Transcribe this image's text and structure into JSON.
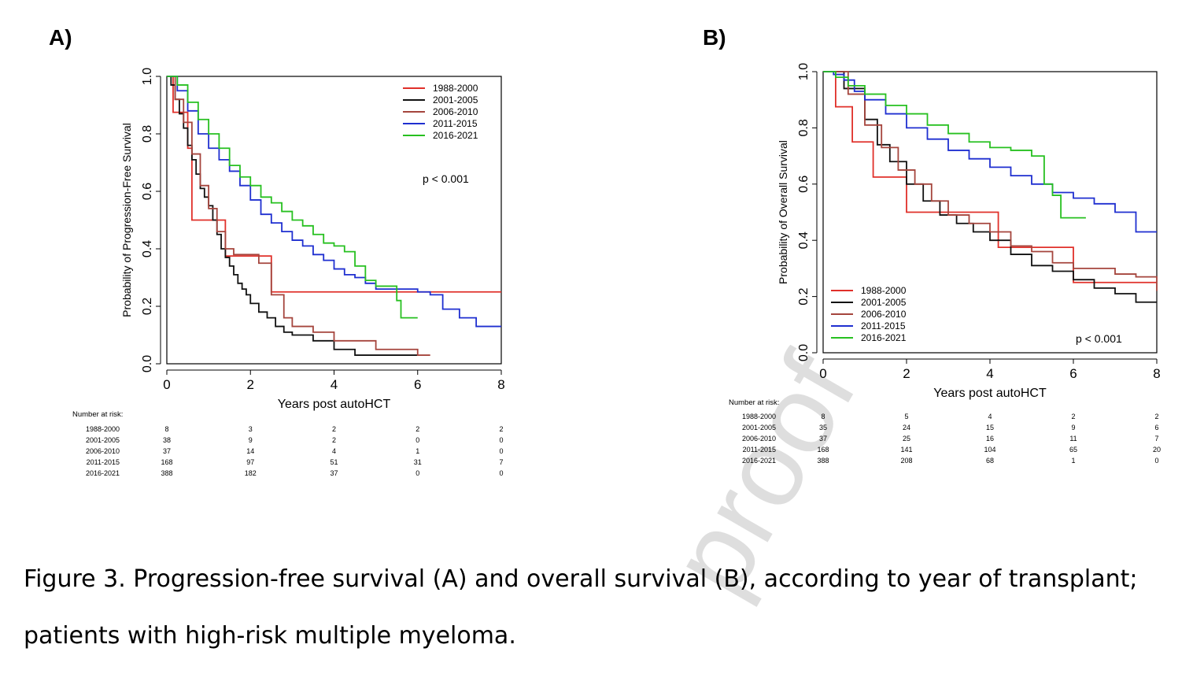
{
  "panel_labels": [
    "A)",
    "B)"
  ],
  "caption": "Figure 3. Progression-free survival (A) and overall survival (B), according to year of transplant; patients with high-risk multiple myeloma.",
  "watermark": "proof",
  "colors": {
    "1988-2000": "#e0302a",
    "2001-2005": "#111111",
    "2006-2010": "#a5453d",
    "2011-2015": "#1f2fd0",
    "2016-2021": "#27c020"
  },
  "chart_data": [
    {
      "type": "line",
      "title": "",
      "xlabel": "Years post autoHCT",
      "ylabel": "Probability of Progression-Free Survival",
      "xlim": [
        0,
        8
      ],
      "ylim": [
        0,
        1
      ],
      "xticks": [
        "0",
        "2",
        "4",
        "6",
        "8"
      ],
      "yticks": [
        "0.0",
        "0.2",
        "0.4",
        "0.6",
        "0.8",
        "1.0"
      ],
      "legend_position": "top-right",
      "pvalue": "p < 0.001",
      "risk_table": {
        "header": "Number at risk:",
        "times": [
          0,
          2,
          4,
          6,
          8
        ],
        "rows": [
          {
            "label": "1988-2000",
            "values": [
              "8",
              "3",
              "2",
              "2",
              "2"
            ]
          },
          {
            "label": "2001-2005",
            "values": [
              "38",
              "9",
              "2",
              "0",
              "0"
            ]
          },
          {
            "label": "2006-2010",
            "values": [
              "37",
              "14",
              "4",
              "1",
              "0"
            ]
          },
          {
            "label": "2011-2015",
            "values": [
              "168",
              "97",
              "51",
              "31",
              "7"
            ]
          },
          {
            "label": "2016-2021",
            "values": [
              "388",
              "182",
              "37",
              "0",
              "0"
            ]
          }
        ]
      },
      "series": [
        {
          "name": "1988-2000",
          "x": [
            0,
            0.15,
            0.5,
            0.6,
            1.0,
            1.4,
            2.0,
            2.5,
            8
          ],
          "y": [
            1,
            0.875,
            0.75,
            0.5,
            0.5,
            0.375,
            0.375,
            0.25,
            0.25
          ]
        },
        {
          "name": "2001-2005",
          "x": [
            0,
            0.1,
            0.2,
            0.3,
            0.4,
            0.5,
            0.6,
            0.7,
            0.8,
            0.9,
            1.0,
            1.1,
            1.2,
            1.3,
            1.4,
            1.5,
            1.6,
            1.7,
            1.8,
            1.9,
            2.0,
            2.2,
            2.4,
            2.6,
            2.8,
            3.0,
            3.5,
            4.0,
            4.5,
            6.0
          ],
          "y": [
            1,
            0.97,
            0.92,
            0.87,
            0.82,
            0.76,
            0.71,
            0.66,
            0.61,
            0.58,
            0.55,
            0.5,
            0.45,
            0.4,
            0.37,
            0.34,
            0.31,
            0.28,
            0.26,
            0.24,
            0.21,
            0.18,
            0.16,
            0.13,
            0.11,
            0.1,
            0.08,
            0.05,
            0.03,
            0.03
          ]
        },
        {
          "name": "2006-2010",
          "x": [
            0,
            0.2,
            0.4,
            0.6,
            0.8,
            1.0,
            1.2,
            1.4,
            1.6,
            1.8,
            2.0,
            2.2,
            2.5,
            2.8,
            3.0,
            3.5,
            4.0,
            5.0,
            6.0,
            6.3
          ],
          "y": [
            1,
            0.92,
            0.84,
            0.73,
            0.62,
            0.54,
            0.46,
            0.4,
            0.38,
            0.38,
            0.38,
            0.35,
            0.24,
            0.16,
            0.13,
            0.11,
            0.08,
            0.05,
            0.03,
            0.03
          ]
        },
        {
          "name": "2011-2015",
          "x": [
            0,
            0.25,
            0.5,
            0.75,
            1.0,
            1.25,
            1.5,
            1.75,
            2.0,
            2.25,
            2.5,
            2.75,
            3.0,
            3.25,
            3.5,
            3.75,
            4.0,
            4.25,
            4.5,
            4.75,
            5.0,
            5.5,
            6.0,
            6.3,
            6.6,
            7.0,
            7.4,
            8.0
          ],
          "y": [
            1,
            0.95,
            0.88,
            0.8,
            0.75,
            0.71,
            0.67,
            0.62,
            0.57,
            0.52,
            0.49,
            0.46,
            0.43,
            0.41,
            0.38,
            0.36,
            0.33,
            0.31,
            0.3,
            0.28,
            0.26,
            0.26,
            0.25,
            0.24,
            0.19,
            0.16,
            0.13,
            0.13
          ]
        },
        {
          "name": "2016-2021",
          "x": [
            0,
            0.25,
            0.5,
            0.75,
            1.0,
            1.25,
            1.5,
            1.75,
            2.0,
            2.25,
            2.5,
            2.75,
            3.0,
            3.25,
            3.5,
            3.75,
            4.0,
            4.25,
            4.5,
            4.75,
            5.0,
            5.5,
            5.6,
            6.0
          ],
          "y": [
            1,
            0.97,
            0.91,
            0.85,
            0.8,
            0.75,
            0.69,
            0.65,
            0.62,
            0.58,
            0.56,
            0.53,
            0.5,
            0.48,
            0.45,
            0.42,
            0.41,
            0.39,
            0.34,
            0.29,
            0.27,
            0.22,
            0.16,
            0.16
          ]
        }
      ]
    },
    {
      "type": "line",
      "title": "",
      "xlabel": "Years post autoHCT",
      "ylabel": "Probability of Overall Survival",
      "xlim": [
        0,
        8
      ],
      "ylim": [
        0,
        1
      ],
      "xticks": [
        "0",
        "2",
        "4",
        "6",
        "8"
      ],
      "yticks": [
        "0.0",
        "0.2",
        "0.4",
        "0.6",
        "0.8",
        "1.0"
      ],
      "legend_position": "bottom-left",
      "pvalue": "p < 0.001",
      "risk_table": {
        "header": "Number at risk:",
        "times": [
          0,
          2,
          4,
          6,
          8
        ],
        "rows": [
          {
            "label": "1988-2000",
            "values": [
              "8",
              "5",
              "4",
              "2",
              "2"
            ]
          },
          {
            "label": "2001-2005",
            "values": [
              "35",
              "24",
              "15",
              "9",
              "6"
            ]
          },
          {
            "label": "2006-2010",
            "values": [
              "37",
              "25",
              "16",
              "11",
              "7"
            ]
          },
          {
            "label": "2011-2015",
            "values": [
              "168",
              "141",
              "104",
              "65",
              "20"
            ]
          },
          {
            "label": "2016-2021",
            "values": [
              "388",
              "208",
              "68",
              "1",
              "0"
            ]
          }
        ]
      },
      "series": [
        {
          "name": "1988-2000",
          "x": [
            0,
            0.3,
            0.7,
            1.2,
            2.0,
            3.5,
            4.2,
            6.0,
            8.0
          ],
          "y": [
            1,
            0.875,
            0.75,
            0.625,
            0.5,
            0.5,
            0.375,
            0.25,
            0.25
          ]
        },
        {
          "name": "2001-2005",
          "x": [
            0,
            0.5,
            1.0,
            1.3,
            1.6,
            2.0,
            2.4,
            2.8,
            3.2,
            3.6,
            4.0,
            4.5,
            5.0,
            5.5,
            6.0,
            6.5,
            7.0,
            7.5,
            8.0
          ],
          "y": [
            1,
            0.94,
            0.83,
            0.74,
            0.68,
            0.6,
            0.54,
            0.49,
            0.46,
            0.43,
            0.4,
            0.35,
            0.31,
            0.29,
            0.26,
            0.23,
            0.21,
            0.18,
            0.18
          ]
        },
        {
          "name": "2006-2010",
          "x": [
            0,
            0.6,
            1.0,
            1.4,
            1.8,
            2.2,
            2.6,
            3.0,
            3.5,
            4.0,
            4.5,
            5.0,
            5.5,
            6.0,
            7.0,
            7.5,
            8.0
          ],
          "y": [
            1,
            0.92,
            0.81,
            0.73,
            0.65,
            0.6,
            0.54,
            0.49,
            0.46,
            0.43,
            0.38,
            0.36,
            0.32,
            0.3,
            0.28,
            0.27,
            0.22
          ]
        },
        {
          "name": "2011-2015",
          "x": [
            0,
            0.25,
            0.5,
            0.75,
            1.0,
            1.5,
            2.0,
            2.5,
            3.0,
            3.5,
            4.0,
            4.5,
            5.0,
            5.5,
            6.0,
            6.5,
            7.0,
            7.5,
            8.0
          ],
          "y": [
            1,
            0.99,
            0.97,
            0.93,
            0.9,
            0.85,
            0.8,
            0.76,
            0.72,
            0.69,
            0.66,
            0.63,
            0.6,
            0.57,
            0.55,
            0.53,
            0.5,
            0.43,
            0.43
          ]
        },
        {
          "name": "2016-2021",
          "x": [
            0,
            0.3,
            0.6,
            1.0,
            1.5,
            2.0,
            2.5,
            3.0,
            3.5,
            4.0,
            4.5,
            5.0,
            5.3,
            5.5,
            5.7,
            6.3
          ],
          "y": [
            1,
            0.98,
            0.95,
            0.92,
            0.88,
            0.85,
            0.81,
            0.78,
            0.75,
            0.73,
            0.72,
            0.7,
            0.6,
            0.56,
            0.48,
            0.48
          ]
        }
      ]
    }
  ]
}
